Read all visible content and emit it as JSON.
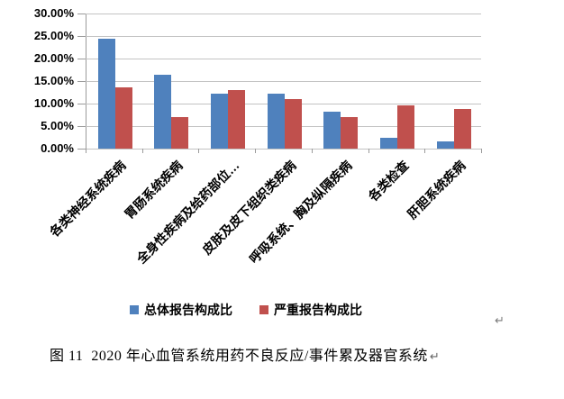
{
  "chart_data": {
    "type": "bar",
    "title": "",
    "xlabel": "",
    "ylabel": "",
    "categories": [
      "各类神经系统疾病",
      "胃肠系统疾病",
      "全身性疾病及给药部位…",
      "皮肤及皮下组织类疾病",
      "呼吸系统、胸及纵隔疾病",
      "各类检查",
      "肝胆系统疾病"
    ],
    "series": [
      {
        "name": "总体报告构成比",
        "color": "#4F81BD",
        "values": [
          24.5,
          16.4,
          12.3,
          12.2,
          8.3,
          2.4,
          1.7
        ]
      },
      {
        "name": "严重报告构成比",
        "color": "#C0504D",
        "values": [
          13.7,
          7.1,
          13.1,
          11.1,
          7.1,
          9.7,
          8.9
        ]
      }
    ],
    "ylim": [
      0,
      30
    ],
    "ytick_step": 5,
    "ytick_labels": [
      "30.00%",
      "25.00%",
      "20.00%",
      "15.00%",
      "10.00%",
      "5.00%",
      "0.00%"
    ],
    "value_format": "percent",
    "grid": true,
    "legend_position": "bottom"
  },
  "caption": {
    "text": "图 11  2020 年心血管系统用药不良反应/事件累及器官系统"
  },
  "marks": {
    "after_chart": "↵",
    "after_caption": "↵"
  },
  "colors": {
    "background": "#FFFFFF",
    "gridline": "#C3C3C3",
    "axis": "#9B9B9B",
    "text": "#000000",
    "paragraph_mark": "#7A7A7A",
    "series_total": "#4F81BD",
    "series_serious": "#C0504D"
  }
}
